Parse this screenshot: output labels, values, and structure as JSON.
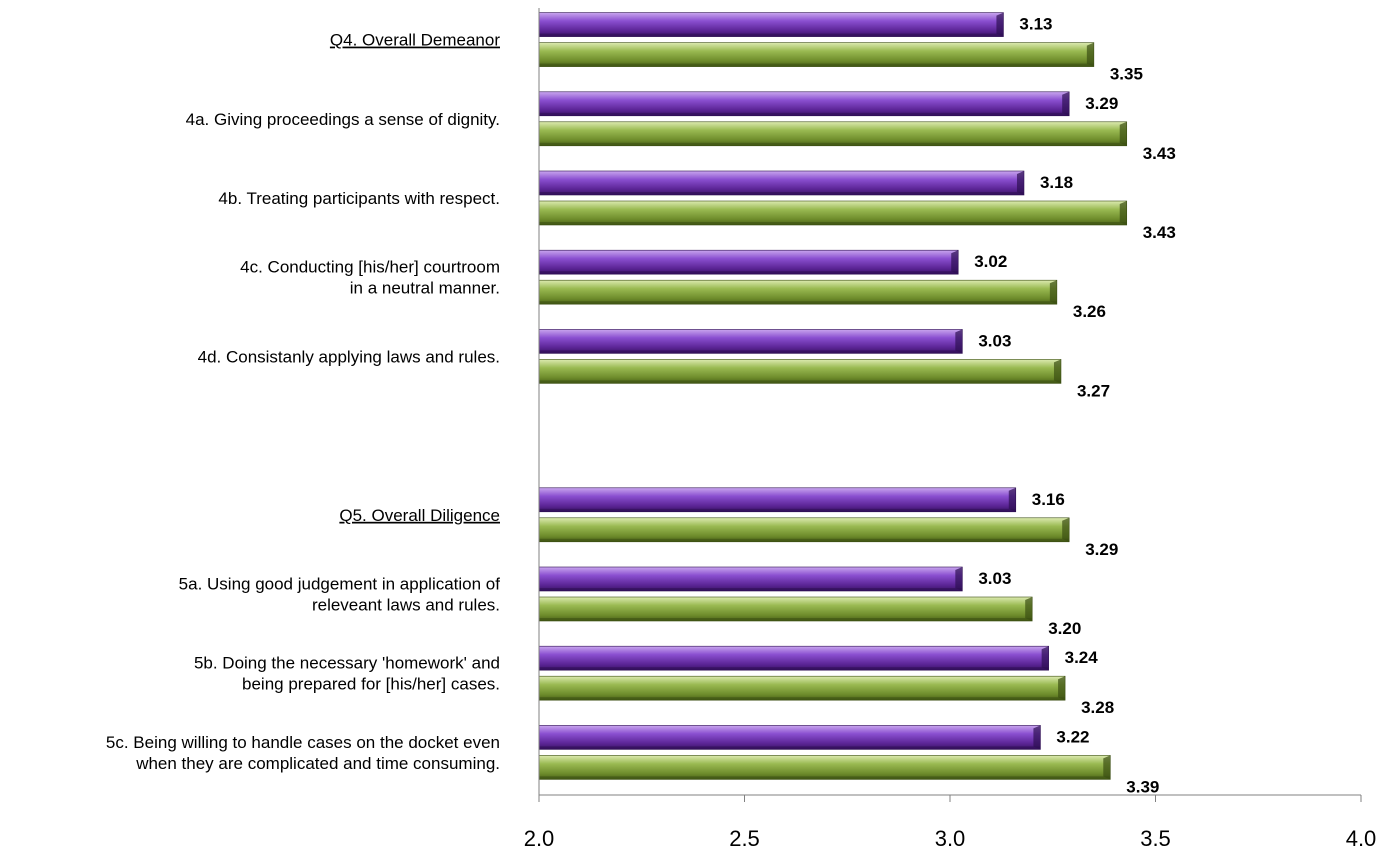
{
  "chart_data": {
    "type": "bar",
    "orientation": "horizontal",
    "xlim": [
      2.0,
      4.0
    ],
    "ticks": [
      "2.0",
      "2.5",
      "3.0",
      "3.5",
      "4.0"
    ],
    "tick_values": [
      2.0,
      2.5,
      3.0,
      3.5,
      4.0
    ],
    "categories": [
      {
        "lines": [
          "Q4. Overall Demeanor"
        ],
        "underline": true
      },
      {
        "lines": [
          "4a. Giving proceedings a sense of dignity."
        ],
        "underline": false
      },
      {
        "lines": [
          "4b. Treating participants with respect."
        ],
        "underline": false
      },
      {
        "lines": [
          "4c. Conducting [his/her] courtroom",
          "in a neutral manner."
        ],
        "underline": false
      },
      {
        "lines": [
          "4d. Consistanly applying laws and rules."
        ],
        "underline": false
      },
      {
        "lines": [],
        "underline": false
      },
      {
        "lines": [
          "Q5.  Overall Diligence"
        ],
        "underline": true
      },
      {
        "lines": [
          "5a. Using good judgement in application of",
          "releveant laws and rules."
        ],
        "underline": false
      },
      {
        "lines": [
          "5b. Doing the necessary 'homework' and",
          "being prepared for [his/her] cases."
        ],
        "underline": false
      },
      {
        "lines": [
          "5c. Being willing to handle cases on the docket even",
          "when they are complicated and time consuming."
        ],
        "underline": false
      }
    ],
    "series": [
      {
        "color": "#7a3cc0",
        "values": [
          3.13,
          3.29,
          3.18,
          3.02,
          3.03,
          null,
          3.16,
          3.03,
          3.24,
          3.22
        ],
        "labels": [
          "3.13",
          "3.29",
          "3.18",
          "3.02",
          "3.03",
          "",
          "3.16",
          "3.03",
          "3.24",
          "3.22"
        ]
      },
      {
        "color": "#86a83c",
        "values": [
          3.35,
          3.43,
          3.43,
          3.26,
          3.27,
          null,
          3.29,
          3.2,
          3.28,
          3.39
        ],
        "labels": [
          "3.35",
          "3.43",
          "3.43",
          "3.26",
          "3.27",
          "",
          "3.29",
          "3.20",
          "3.28",
          "3.39"
        ]
      }
    ],
    "grid": false,
    "legend": "none"
  }
}
